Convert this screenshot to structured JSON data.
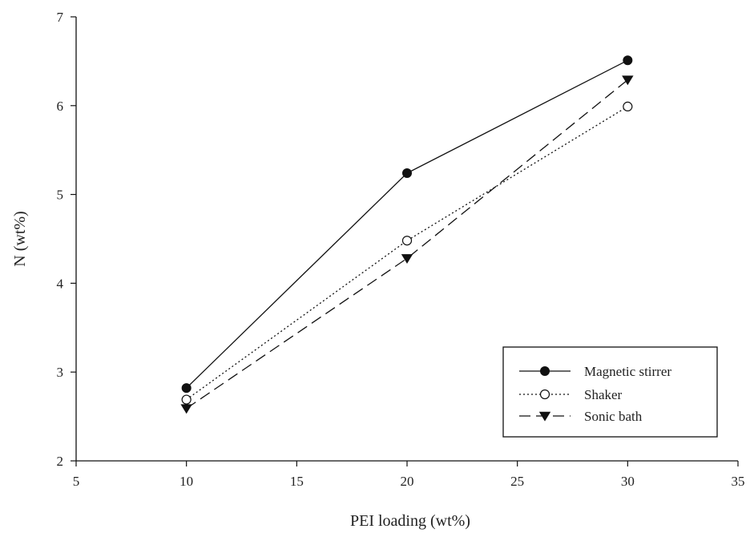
{
  "chart_data": {
    "type": "line",
    "xlabel": "PEI loading (wt%)",
    "ylabel": "N (wt%)",
    "xlim": [
      5,
      35
    ],
    "ylim": [
      2,
      7
    ],
    "xticks": [
      5,
      10,
      15,
      20,
      25,
      30,
      35
    ],
    "yticks": [
      2,
      3,
      4,
      5,
      6,
      7
    ],
    "x": [
      10,
      20,
      30
    ],
    "series": [
      {
        "name": "Magnetic stirrer",
        "values": [
          2.82,
          5.24,
          6.51
        ],
        "marker": "filled-circle",
        "line": "solid",
        "color": "#111111"
      },
      {
        "name": "Shaker",
        "values": [
          2.69,
          4.48,
          5.99
        ],
        "marker": "open-circle",
        "line": "dotted",
        "color": "#111111"
      },
      {
        "name": "Sonic bath",
        "values": [
          2.59,
          4.28,
          6.29
        ],
        "marker": "filled-triangle-down",
        "line": "dashed",
        "color": "#111111"
      }
    ],
    "grid": false,
    "legend_position": "bottom-right"
  }
}
